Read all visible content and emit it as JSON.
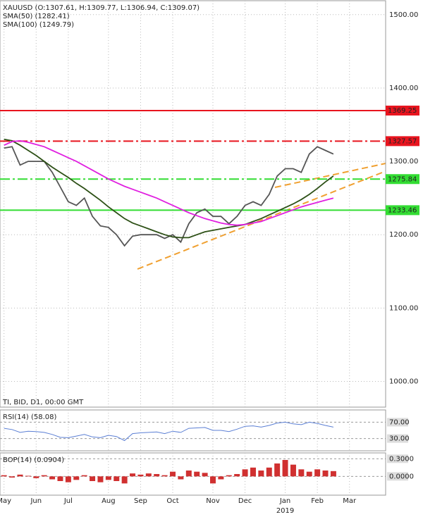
{
  "chart_data": [
    {
      "type": "line",
      "info": "TI, BID, D1, 00:00 GMT",
      "ylim": [
        965,
        1519
      ],
      "yticks": [
        {
          "value": 1000,
          "label": "1000.00"
        },
        {
          "value": 1100,
          "label": "1100.00"
        },
        {
          "value": 1200,
          "label": "1200.00"
        },
        {
          "value": 1300,
          "label": "1300.00"
        },
        {
          "value": 1400,
          "label": "1400.00"
        },
        {
          "value": 1500,
          "label": "1500.00"
        }
      ],
      "grid": true,
      "series": [
        {
          "name": "XAUUSD (O:1307.61, H:1309.77, L:1306.94, C:1309.07)",
          "color": "#555555",
          "values": [
            1318,
            1320,
            1295,
            1300,
            1300,
            1300,
            1285,
            1265,
            1245,
            1240,
            1250,
            1225,
            1212,
            1210,
            1200,
            1185,
            1198,
            1200,
            1200,
            1200,
            1195,
            1200,
            1190,
            1215,
            1230,
            1235,
            1225,
            1225,
            1215,
            1225,
            1240,
            1245,
            1240,
            1255,
            1280,
            1290,
            1290,
            1285,
            1310,
            1320,
            1315,
            1310,
            null,
            null,
            null,
            null,
            null,
            null
          ]
        },
        {
          "name": "SMA(50) (1282.41)",
          "color": "#2d5016",
          "values": [
            1330,
            1328,
            1322,
            1315,
            1308,
            1300,
            1292,
            1285,
            1278,
            1270,
            1263,
            1255,
            1247,
            1238,
            1230,
            1222,
            1216,
            1212,
            1208,
            1204,
            1200,
            1197,
            1196,
            1196,
            1200,
            1204,
            1206,
            1208,
            1210,
            1212,
            1214,
            1218,
            1222,
            1227,
            1232,
            1237,
            1242,
            1248,
            1255,
            1263,
            1272,
            1280,
            null,
            null,
            null,
            null,
            null,
            null
          ]
        },
        {
          "name": "SMA(100) (1249.79)",
          "color": "#e020e0",
          "values": [
            1322,
            1327,
            1328,
            1326,
            1323,
            1320,
            1315,
            1310,
            1305,
            1300,
            1294,
            1288,
            1282,
            1276,
            1271,
            1266,
            1262,
            1258,
            1254,
            1250,
            1245,
            1240,
            1235,
            1230,
            1226,
            1222,
            1219,
            1216,
            1214,
            1213,
            1214,
            1216,
            1218,
            1222,
            1226,
            1230,
            1234,
            1238,
            1241,
            1244,
            1247,
            1250,
            null,
            null,
            null,
            null,
            null,
            null
          ]
        }
      ],
      "levels": [
        {
          "value": 1369.25,
          "color": "#e8141e",
          "dash": "solid",
          "text_color": "#ffffff"
        },
        {
          "value": 1327.57,
          "color": "#e8141e",
          "dash": "dashdot",
          "text_color": "#ffffff"
        },
        {
          "value": 1275.84,
          "color": "#33dd33",
          "dash": "dashdot",
          "text_color": "#000000"
        },
        {
          "value": 1233.46,
          "color": "#33dd33",
          "dash": "solid",
          "text_color": "#000000"
        }
      ]
    },
    {
      "type": "line",
      "ylim": [
        0,
        100
      ],
      "yticks": [
        {
          "value": 70,
          "label": "70.00"
        },
        {
          "value": 30,
          "label": "30.00"
        }
      ],
      "series": [
        {
          "name": "RSI(14) (58.08)",
          "color": "#5b7fd4",
          "values": [
            55,
            52,
            45,
            48,
            47,
            45,
            40,
            33,
            32,
            36,
            40,
            34,
            32,
            38,
            35,
            25,
            42,
            44,
            45,
            46,
            42,
            48,
            45,
            55,
            56,
            57,
            50,
            50,
            47,
            53,
            60,
            61,
            58,
            62,
            68,
            70,
            66,
            64,
            70,
            67,
            62,
            58,
            null,
            null,
            null,
            null,
            null,
            null
          ]
        }
      ]
    },
    {
      "type": "bar",
      "ylim": [
        -0.32,
        0.4
      ],
      "yticks": [
        {
          "value": 0.3,
          "label": "0.3000"
        },
        {
          "value": 0,
          "label": "0.0000"
        }
      ],
      "categories": [
        "May",
        null,
        null,
        null,
        "Jun",
        null,
        null,
        null,
        "Jul",
        null,
        null,
        null,
        null,
        "Aug",
        null,
        null,
        null,
        "Sep",
        null,
        null,
        null,
        "Oct",
        null,
        null,
        null,
        null,
        "Nov",
        null,
        null,
        null,
        "Dec",
        null,
        null,
        null,
        null,
        "Jan",
        null,
        null,
        null,
        "Feb",
        null,
        null,
        null,
        "Mar",
        null,
        null,
        null,
        null
      ],
      "year_label": "2019",
      "series": [
        {
          "name": "BOP(14) (0.0904)",
          "color": "#d03030",
          "values": [
            0.02,
            -0.02,
            0.03,
            0.01,
            -0.03,
            0.02,
            -0.05,
            -0.08,
            -0.1,
            -0.06,
            0.02,
            -0.08,
            -0.1,
            -0.06,
            -0.08,
            -0.12,
            0.05,
            0.03,
            0.05,
            0.04,
            0.02,
            0.08,
            -0.05,
            0.1,
            0.08,
            0.06,
            -0.12,
            -0.05,
            0.02,
            0.04,
            0.12,
            0.15,
            0.1,
            0.15,
            0.22,
            0.28,
            0.2,
            0.12,
            0.08,
            0.12,
            0.1,
            0.09,
            null,
            null,
            null,
            null,
            null,
            null
          ]
        }
      ]
    }
  ]
}
